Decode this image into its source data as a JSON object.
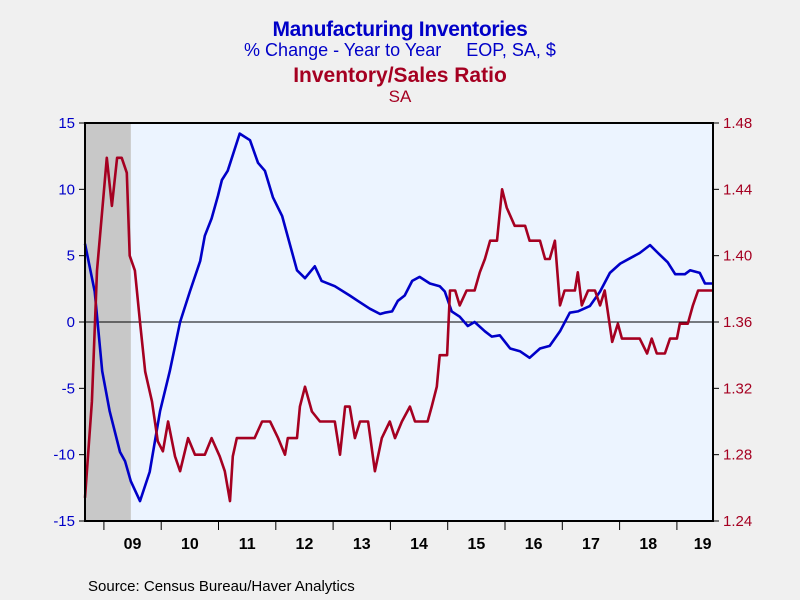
{
  "chart_data": {
    "type": "line",
    "title": "Manufacturing Inventories",
    "subtitle": "% Change - Year to Year     EOP, SA, $",
    "title2": "Inventory/Sales Ratio",
    "subtitle2": "SA",
    "source": "Source:  Census Bureau/Haver Analytics",
    "xlim": [
      2008.67,
      2019.63
    ],
    "x_tick_labels": [
      "09",
      "10",
      "11",
      "12",
      "13",
      "14",
      "15",
      "16",
      "17",
      "18",
      "19"
    ],
    "y_left": {
      "ylim": [
        -15,
        15
      ],
      "ticks": [
        "15",
        "10",
        "5",
        "0",
        "-5",
        "-10",
        "-15"
      ],
      "color": "#0000c8"
    },
    "y_right": {
      "ylim": [
        1.24,
        1.48
      ],
      "ticks": [
        "1.48",
        "1.44",
        "1.40",
        "1.36",
        "1.32",
        "1.28",
        "1.24"
      ],
      "color": "#a50021"
    },
    "recession": [
      2008.67,
      2009.47
    ],
    "colors": {
      "plot_bg": "#ecf4ff",
      "recession": "#c8c8c8",
      "zero_line": "#000000"
    },
    "series": [
      {
        "name": "Manufacturing Inventories % Change Y/Y",
        "axis": "left",
        "color": "#0000c8",
        "points": [
          [
            2008.67,
            5.9
          ],
          [
            2008.84,
            2.3
          ],
          [
            2008.97,
            -3.7
          ],
          [
            2009.1,
            -6.7
          ],
          [
            2009.28,
            -9.8
          ],
          [
            2009.37,
            -10.5
          ],
          [
            2009.47,
            -12
          ],
          [
            2009.63,
            -13.5
          ],
          [
            2009.8,
            -11.3
          ],
          [
            2009.98,
            -6.7
          ],
          [
            2010.15,
            -3.7
          ],
          [
            2010.33,
            0
          ],
          [
            2010.5,
            2.3
          ],
          [
            2010.68,
            4.6
          ],
          [
            2010.76,
            6.5
          ],
          [
            2010.88,
            7.8
          ],
          [
            2010.99,
            9.5
          ],
          [
            2011.06,
            10.7
          ],
          [
            2011.16,
            11.4
          ],
          [
            2011.37,
            14.2
          ],
          [
            2011.55,
            13.7
          ],
          [
            2011.69,
            12
          ],
          [
            2011.81,
            11.4
          ],
          [
            2011.95,
            9.4
          ],
          [
            2012.11,
            8
          ],
          [
            2012.25,
            5.8
          ],
          [
            2012.37,
            3.9
          ],
          [
            2012.51,
            3.3
          ],
          [
            2012.68,
            4.2
          ],
          [
            2012.8,
            3.1
          ],
          [
            2013.03,
            2.7
          ],
          [
            2013.29,
            2
          ],
          [
            2013.43,
            1.6
          ],
          [
            2013.64,
            1
          ],
          [
            2013.82,
            0.6
          ],
          [
            2013.9,
            0.7
          ],
          [
            2014.03,
            0.8
          ],
          [
            2014.13,
            1.6
          ],
          [
            2014.25,
            2
          ],
          [
            2014.38,
            3.1
          ],
          [
            2014.51,
            3.4
          ],
          [
            2014.69,
            2.9
          ],
          [
            2014.86,
            2.7
          ],
          [
            2014.95,
            2.3
          ],
          [
            2015.07,
            0.8
          ],
          [
            2015.21,
            0.4
          ],
          [
            2015.35,
            -0.3
          ],
          [
            2015.47,
            0
          ],
          [
            2015.65,
            -0.7
          ],
          [
            2015.77,
            -1.1
          ],
          [
            2015.91,
            -1
          ],
          [
            2016.09,
            -2
          ],
          [
            2016.26,
            -2.2
          ],
          [
            2016.43,
            -2.7
          ],
          [
            2016.61,
            -2
          ],
          [
            2016.78,
            -1.8
          ],
          [
            2016.96,
            -0.7
          ],
          [
            2017.13,
            0.7
          ],
          [
            2017.27,
            0.8
          ],
          [
            2017.48,
            1.2
          ],
          [
            2017.66,
            2.3
          ],
          [
            2017.83,
            3.7
          ],
          [
            2018.01,
            4.4
          ],
          [
            2018.18,
            4.8
          ],
          [
            2018.35,
            5.2
          ],
          [
            2018.53,
            5.8
          ],
          [
            2018.67,
            5.2
          ],
          [
            2018.84,
            4.5
          ],
          [
            2018.97,
            3.6
          ],
          [
            2019.14,
            3.6
          ],
          [
            2019.23,
            3.9
          ],
          [
            2019.4,
            3.7
          ],
          [
            2019.49,
            2.9
          ],
          [
            2019.63,
            2.9
          ]
        ]
      },
      {
        "name": "Inventory/Sales Ratio",
        "axis": "right",
        "color": "#a50021",
        "points": [
          [
            2008.67,
            1.254
          ],
          [
            2008.79,
            1.312
          ],
          [
            2008.88,
            1.391
          ],
          [
            2009.05,
            1.459
          ],
          [
            2009.14,
            1.43
          ],
          [
            2009.23,
            1.459
          ],
          [
            2009.31,
            1.459
          ],
          [
            2009.4,
            1.45
          ],
          [
            2009.45,
            1.4
          ],
          [
            2009.54,
            1.391
          ],
          [
            2009.63,
            1.36
          ],
          [
            2009.72,
            1.33
          ],
          [
            2009.84,
            1.312
          ],
          [
            2009.94,
            1.288
          ],
          [
            2010.03,
            1.282
          ],
          [
            2010.12,
            1.3
          ],
          [
            2010.24,
            1.279
          ],
          [
            2010.33,
            1.27
          ],
          [
            2010.47,
            1.29
          ],
          [
            2010.59,
            1.28
          ],
          [
            2010.76,
            1.28
          ],
          [
            2010.88,
            1.29
          ],
          [
            2011.02,
            1.279
          ],
          [
            2011.11,
            1.27
          ],
          [
            2011.2,
            1.252
          ],
          [
            2011.25,
            1.279
          ],
          [
            2011.32,
            1.29
          ],
          [
            2011.63,
            1.29
          ],
          [
            2011.76,
            1.3
          ],
          [
            2011.9,
            1.3
          ],
          [
            2012.04,
            1.29
          ],
          [
            2012.16,
            1.28
          ],
          [
            2012.21,
            1.29
          ],
          [
            2012.37,
            1.29
          ],
          [
            2012.42,
            1.309
          ],
          [
            2012.51,
            1.321
          ],
          [
            2012.63,
            1.306
          ],
          [
            2012.77,
            1.3
          ],
          [
            2013.03,
            1.3
          ],
          [
            2013.12,
            1.28
          ],
          [
            2013.21,
            1.309
          ],
          [
            2013.29,
            1.309
          ],
          [
            2013.38,
            1.29
          ],
          [
            2013.47,
            1.3
          ],
          [
            2013.61,
            1.3
          ],
          [
            2013.73,
            1.27
          ],
          [
            2013.85,
            1.29
          ],
          [
            2013.99,
            1.3
          ],
          [
            2014.08,
            1.29
          ],
          [
            2014.2,
            1.3
          ],
          [
            2014.34,
            1.309
          ],
          [
            2014.43,
            1.3
          ],
          [
            2014.65,
            1.3
          ],
          [
            2014.72,
            1.309
          ],
          [
            2014.81,
            1.321
          ],
          [
            2014.86,
            1.34
          ],
          [
            2014.99,
            1.34
          ],
          [
            2015.04,
            1.379
          ],
          [
            2015.13,
            1.379
          ],
          [
            2015.21,
            1.37
          ],
          [
            2015.33,
            1.379
          ],
          [
            2015.47,
            1.379
          ],
          [
            2015.56,
            1.39
          ],
          [
            2015.65,
            1.398
          ],
          [
            2015.74,
            1.409
          ],
          [
            2015.86,
            1.409
          ],
          [
            2015.95,
            1.44
          ],
          [
            2016.03,
            1.429
          ],
          [
            2016.17,
            1.418
          ],
          [
            2016.35,
            1.418
          ],
          [
            2016.43,
            1.409
          ],
          [
            2016.61,
            1.409
          ],
          [
            2016.7,
            1.398
          ],
          [
            2016.78,
            1.398
          ],
          [
            2016.87,
            1.409
          ],
          [
            2016.96,
            1.37
          ],
          [
            2017.04,
            1.379
          ],
          [
            2017.22,
            1.379
          ],
          [
            2017.27,
            1.39
          ],
          [
            2017.34,
            1.37
          ],
          [
            2017.45,
            1.379
          ],
          [
            2017.57,
            1.379
          ],
          [
            2017.66,
            1.37
          ],
          [
            2017.74,
            1.379
          ],
          [
            2017.87,
            1.348
          ],
          [
            2017.97,
            1.359
          ],
          [
            2018.04,
            1.35
          ],
          [
            2018.35,
            1.35
          ],
          [
            2018.48,
            1.341
          ],
          [
            2018.56,
            1.35
          ],
          [
            2018.65,
            1.341
          ],
          [
            2018.79,
            1.341
          ],
          [
            2018.88,
            1.35
          ],
          [
            2019.0,
            1.35
          ],
          [
            2019.05,
            1.359
          ],
          [
            2019.19,
            1.359
          ],
          [
            2019.28,
            1.37
          ],
          [
            2019.37,
            1.379
          ],
          [
            2019.63,
            1.379
          ]
        ]
      }
    ]
  }
}
